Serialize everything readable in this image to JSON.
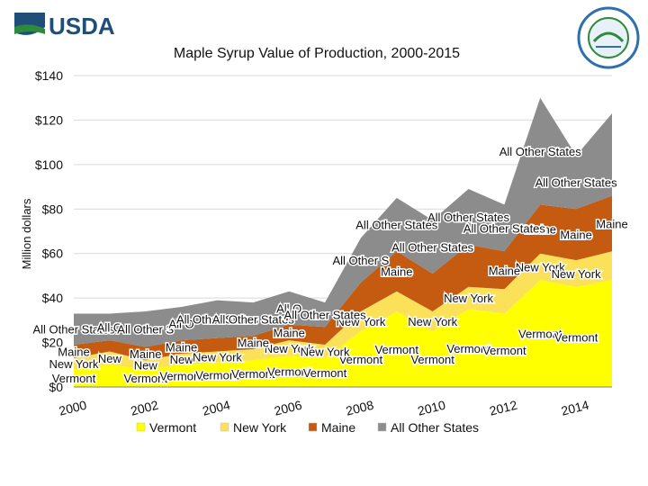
{
  "header": {
    "logo_text": "USDA",
    "seal_text": "AGRICULTURE COUNTS"
  },
  "colors": {
    "vermont": "#ffff00",
    "new_york": "#fbe15a",
    "maine": "#c55a11",
    "all_other": "#8c8c8c",
    "usda_blue": "#1f4e79",
    "usda_green": "#2e8b3d"
  },
  "chart_data": {
    "type": "area",
    "stacked": true,
    "title": "Maple Syrup Value of  Production, 2000-2015",
    "ylabel": "Million dollars",
    "xlabel": "",
    "ylim": [
      0,
      140
    ],
    "yticks": [
      "$0",
      "$20",
      "$40",
      "$60",
      "$80",
      "$100",
      "$120",
      "$140"
    ],
    "ytick_values": [
      0,
      20,
      40,
      60,
      80,
      100,
      120,
      140
    ],
    "x": [
      2000,
      2001,
      2002,
      2003,
      2004,
      2005,
      2006,
      2007,
      2008,
      2009,
      2010,
      2011,
      2012,
      2013,
      2014,
      2015
    ],
    "xticks": [
      "2000",
      "2002",
      "2004",
      "2006",
      "2008",
      "2010",
      "2012",
      "2014"
    ],
    "series": [
      {
        "name": "Vermont",
        "values": [
          8,
          10,
          8,
          10,
          11,
          12,
          14,
          13,
          25,
          34,
          25,
          35,
          33,
          48,
          45,
          48
        ]
      },
      {
        "name": "New York",
        "values": [
          5,
          6,
          4,
          5,
          5,
          5,
          7,
          6,
          9,
          9,
          9,
          10,
          11,
          12,
          12,
          13
        ]
      },
      {
        "name": "Maine",
        "values": [
          6,
          5,
          6,
          6,
          6,
          6,
          7,
          8,
          13,
          18,
          17,
          19,
          17,
          22,
          23,
          25
        ]
      },
      {
        "name": "All Other States",
        "values": [
          14,
          12,
          16,
          15,
          17,
          15,
          15,
          11,
          20,
          24,
          24,
          25,
          21,
          48,
          24,
          37
        ]
      }
    ],
    "legend": [
      "Vermont",
      "New York",
      "Maine",
      "All Other States"
    ],
    "legend_position": "bottom",
    "data_labels": [
      {
        "series": "Vermont",
        "text": "Vermont",
        "year": 2000
      },
      {
        "series": "Vermont",
        "text": "Vermont",
        "year": 2002
      },
      {
        "series": "Vermont",
        "text": "Vermont",
        "year": 2003
      },
      {
        "series": "Vermont",
        "text": "Vermont",
        "year": 2004
      },
      {
        "series": "Vermont",
        "text": "Vermont",
        "year": 2005
      },
      {
        "series": "Vermont",
        "text": "Vermont",
        "year": 2006
      },
      {
        "series": "Vermont",
        "text": "Vermont",
        "year": 2007
      },
      {
        "series": "Vermont",
        "text": "Vermont",
        "year": 2008
      },
      {
        "series": "Vermont",
        "text": "Vermont",
        "year": 2009
      },
      {
        "series": "Vermont",
        "text": "Vermont",
        "year": 2010
      },
      {
        "series": "Vermont",
        "text": "Vermont",
        "year": 2011
      },
      {
        "series": "Vermont",
        "text": "Vermont",
        "year": 2012
      },
      {
        "series": "Vermont",
        "text": "Vermont",
        "year": 2013
      },
      {
        "series": "Vermont",
        "text": "Vermont",
        "year": 2014
      },
      {
        "series": "New York",
        "text": "New York",
        "year": 2000
      },
      {
        "series": "New York",
        "text": "New",
        "year": 2001
      },
      {
        "series": "New York",
        "text": "New",
        "year": 2002
      },
      {
        "series": "New York",
        "text": "New",
        "year": 2003
      },
      {
        "series": "New York",
        "text": "New York",
        "year": 2004
      },
      {
        "series": "New York",
        "text": "New York",
        "year": 2006
      },
      {
        "series": "New York",
        "text": "New York",
        "year": 2007
      },
      {
        "series": "New York",
        "text": "New York",
        "year": 2008
      },
      {
        "series": "New York",
        "text": "New York",
        "year": 2010
      },
      {
        "series": "New York",
        "text": "New York",
        "year": 2011
      },
      {
        "series": "New York",
        "text": "New York",
        "year": 2013
      },
      {
        "series": "New York",
        "text": "New York",
        "year": 2014
      },
      {
        "series": "Maine",
        "text": "Maine",
        "year": 2000
      },
      {
        "series": "Maine",
        "text": "Maine",
        "year": 2002
      },
      {
        "series": "Maine",
        "text": "Maine",
        "year": 2003
      },
      {
        "series": "Maine",
        "text": "Maine",
        "year": 2005
      },
      {
        "series": "Maine",
        "text": "Maine",
        "year": 2006
      },
      {
        "series": "Maine",
        "text": "Maine",
        "year": 2009
      },
      {
        "series": "Maine",
        "text": "Maine",
        "year": 2012
      },
      {
        "series": "Maine",
        "text": "Maine",
        "year": 2013
      },
      {
        "series": "Maine",
        "text": "Maine",
        "year": 2014
      },
      {
        "series": "Maine",
        "text": "Maine",
        "year": 2015
      },
      {
        "series": "All Other States",
        "text": "All Other States",
        "year": 2000
      },
      {
        "series": "All Other States",
        "text": "All O",
        "year": 2001
      },
      {
        "series": "All Other States",
        "text": "All Other S",
        "year": 2002
      },
      {
        "series": "All Other States",
        "text": "All O",
        "year": 2003
      },
      {
        "series": "All Other States",
        "text": "All Other States",
        "year": 2004
      },
      {
        "series": "All Other States",
        "text": "All Other States",
        "year": 2005
      },
      {
        "series": "All Other States",
        "text": "All O",
        "year": 2006
      },
      {
        "series": "All Other States",
        "text": "All Other States",
        "year": 2007
      },
      {
        "series": "All Other States",
        "text": "All Other S",
        "year": 2008
      },
      {
        "series": "All Other States",
        "text": "All Other States",
        "year": 2009
      },
      {
        "series": "All Other States",
        "text": "All Other States",
        "year": 2010
      },
      {
        "series": "All Other States",
        "text": "All Other States",
        "year": 2011
      },
      {
        "series": "All Other States",
        "text": "All Other States",
        "year": 2012
      },
      {
        "series": "All Other States",
        "text": "All Other States",
        "year": 2013
      },
      {
        "series": "All Other States",
        "text": "All Other States",
        "year": 2014
      }
    ]
  }
}
